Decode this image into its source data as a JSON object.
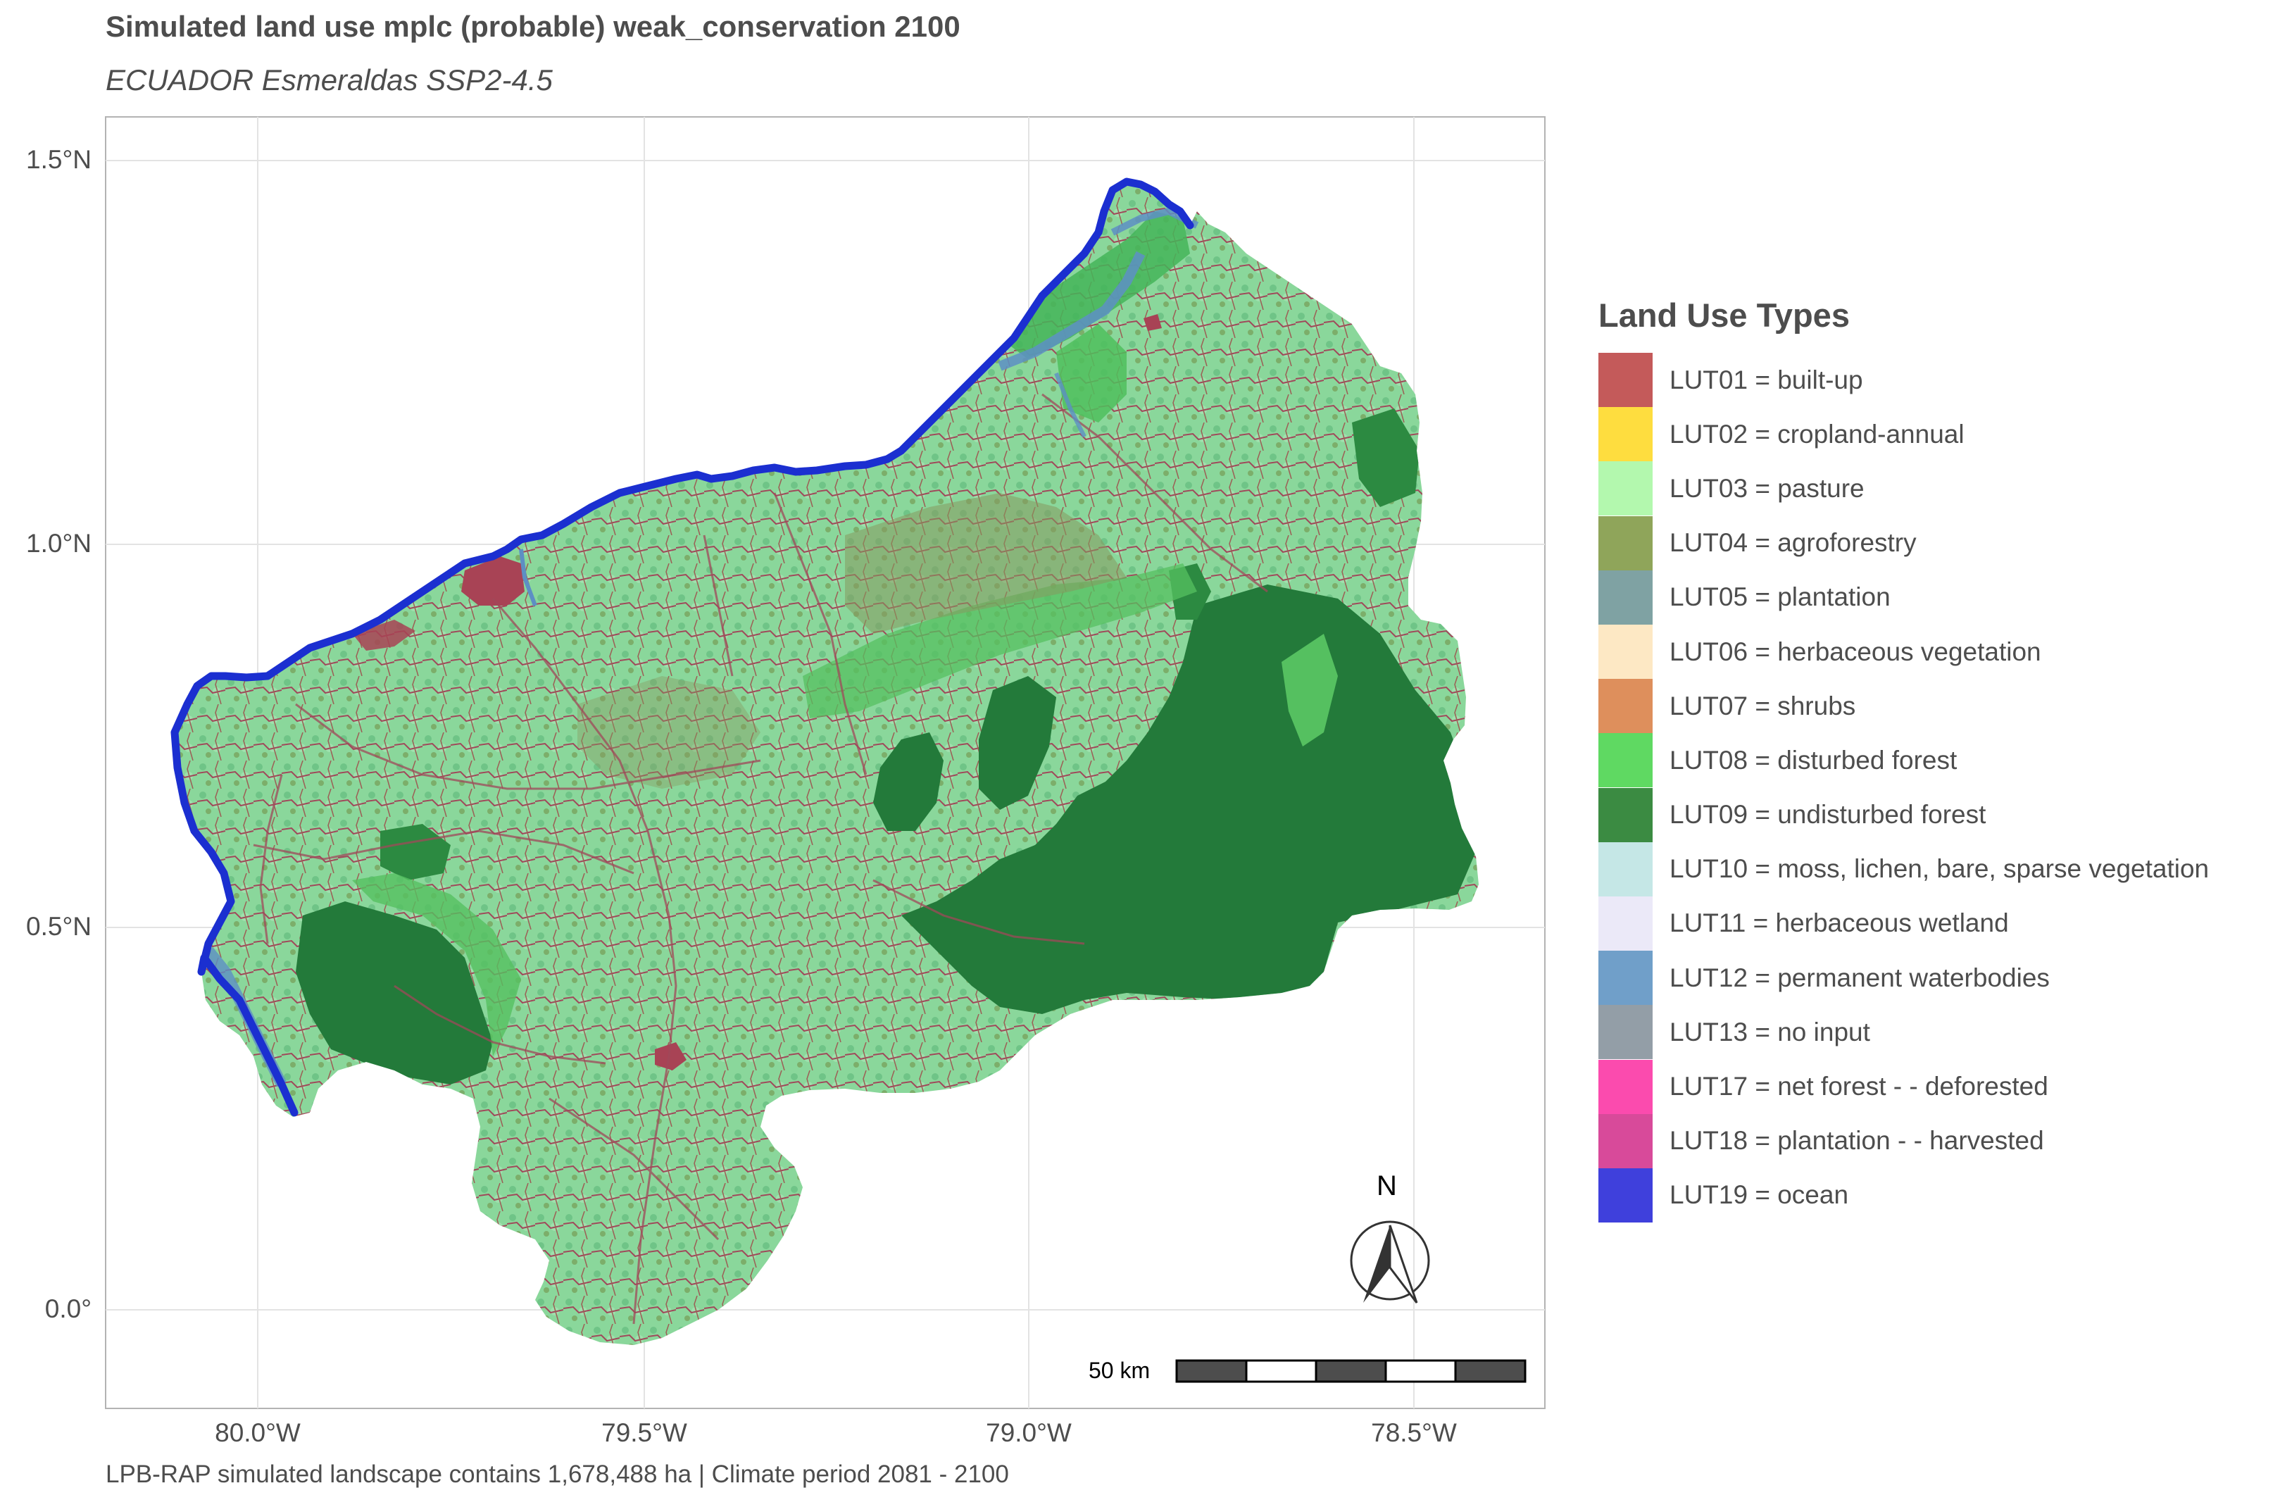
{
  "title": "Simulated land use mplc (probable) weak_conservation 2100",
  "subtitle": "ECUADOR Esmeraldas SSP2-4.5",
  "caption": "LPB-RAP simulated landscape contains 1,678,488 ha | Climate period 2081 - 2100",
  "axes": {
    "y_ticks": [
      "1.5°N",
      "1.0°N",
      "0.5°N",
      "0.0°"
    ],
    "x_ticks": [
      "80.0°W",
      "79.5°W",
      "79.0°W",
      "78.5°W"
    ]
  },
  "legend": {
    "title": "Land Use Types",
    "items": [
      {
        "label": "LUT01 = built-up",
        "color": "#c45a5a"
      },
      {
        "label": "LUT02 = cropland-annual",
        "color": "#fedd3f"
      },
      {
        "label": "LUT03 = pasture",
        "color": "#b3f8ae"
      },
      {
        "label": "LUT04 = agroforestry",
        "color": "#8fa55a"
      },
      {
        "label": "LUT05 = plantation",
        "color": "#7fa2a3"
      },
      {
        "label": "LUT06 = herbaceous vegetation",
        "color": "#fde8c4"
      },
      {
        "label": "LUT07 = shrubs",
        "color": "#de8f5c"
      },
      {
        "label": "LUT08 = disturbed forest",
        "color": "#5fd962"
      },
      {
        "label": "LUT09 = undisturbed forest",
        "color": "#3b8b42"
      },
      {
        "label": "LUT10 = moss, lichen, bare, sparse vegetation",
        "color": "#c5e7e6"
      },
      {
        "label": "LUT11 = herbaceous wetland",
        "color": "#ebe9f8"
      },
      {
        "label": "LUT12 = permanent waterbodies",
        "color": "#709fc9"
      },
      {
        "label": "LUT13 = no input",
        "color": "#939ea7"
      },
      {
        "label": "LUT17 = net forest - - deforested",
        "color": "#fb4bae"
      },
      {
        "label": "LUT18 = plantation - - harvested",
        "color": "#d84a9a"
      },
      {
        "label": "LUT19 = ocean",
        "color": "#3f40dc"
      }
    ]
  },
  "north_arrow": {
    "label": "N"
  },
  "scale_bar": {
    "label": "50 km"
  },
  "map_colors": {
    "coastline": "#1b2fd0",
    "pasture_base": "#86d99c",
    "undisturbed_forest": "#237a3a",
    "disturbed_forest": "#4cc45c",
    "agroforestry_mix": "#86995e",
    "builtup": "#a84355",
    "water": "#5d8fc4"
  }
}
